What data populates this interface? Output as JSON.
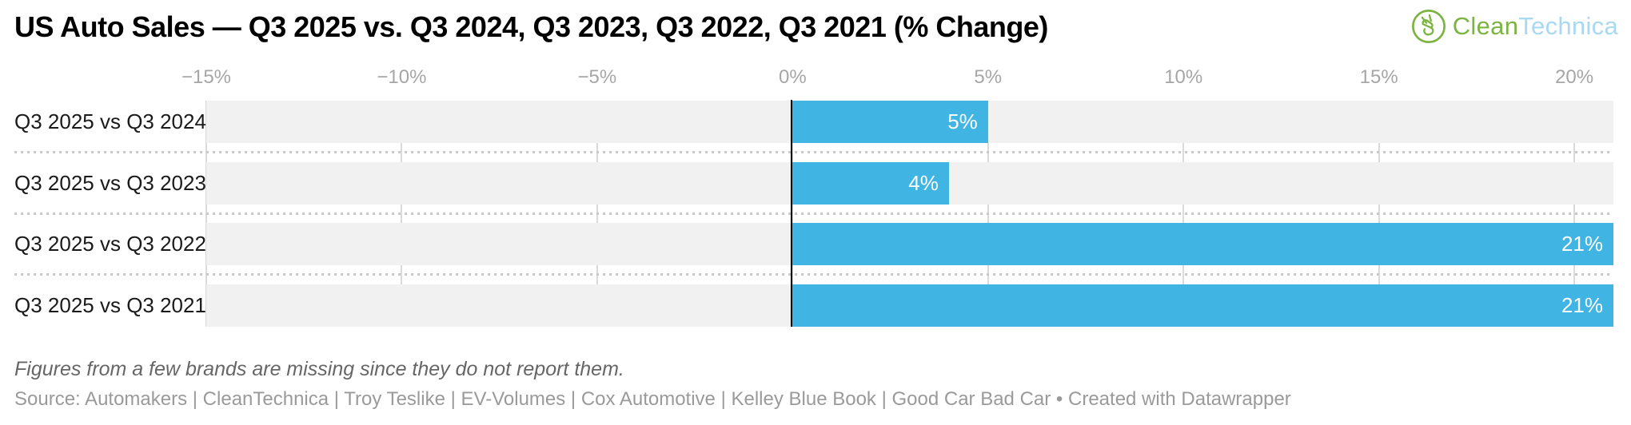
{
  "header": {
    "title": "US Auto Sales — Q3 2025 vs. Q3 2024, Q3 2023, Q3 2022, Q3 2021 (% Change)"
  },
  "logo": {
    "icon": "cleantechnica-leaf-circle-icon",
    "clean": "Clean",
    "technica": "Technica",
    "green": "#7cb442",
    "light_blue": "#a9d9f2"
  },
  "chart_data": {
    "type": "bar",
    "orientation": "horizontal",
    "title": "US Auto Sales — Q3 2025 vs. Q3 2024, Q3 2023, Q3 2022, Q3 2021 (% Change)",
    "categories": [
      "Q3 2025 vs Q3 2024",
      "Q3 2025 vs Q3 2023",
      "Q3 2025 vs Q3 2022",
      "Q3 2025 vs Q3 2021"
    ],
    "values": [
      5,
      4,
      21,
      21
    ],
    "value_labels": [
      "5%",
      "4%",
      "21%",
      "21%"
    ],
    "xlabel": "",
    "ylabel": "",
    "xlim": [
      -15,
      21
    ],
    "ticks": [
      {
        "value": -15,
        "label": "−15%"
      },
      {
        "value": -10,
        "label": "−10%"
      },
      {
        "value": -5,
        "label": "−5%"
      },
      {
        "value": 0,
        "label": "0%"
      },
      {
        "value": 5,
        "label": "5%"
      },
      {
        "value": 10,
        "label": "10%"
      },
      {
        "value": 15,
        "label": "15%"
      },
      {
        "value": 20,
        "label": "20%"
      }
    ],
    "grid": true,
    "legend": "none",
    "bar_color": "#40b4e3",
    "track_color": "#f1f1f1",
    "zero_line_color": "#000000"
  },
  "footer": {
    "note": "Figures from a few brands are missing since they do not report them.",
    "source": "Source: Automakers | CleanTechnica | Troy Teslike | EV-Volumes | Cox Automotive | Kelley Blue Book | Good Car Bad Car",
    "bullet": " • ",
    "attribution": "Created with Datawrapper"
  }
}
